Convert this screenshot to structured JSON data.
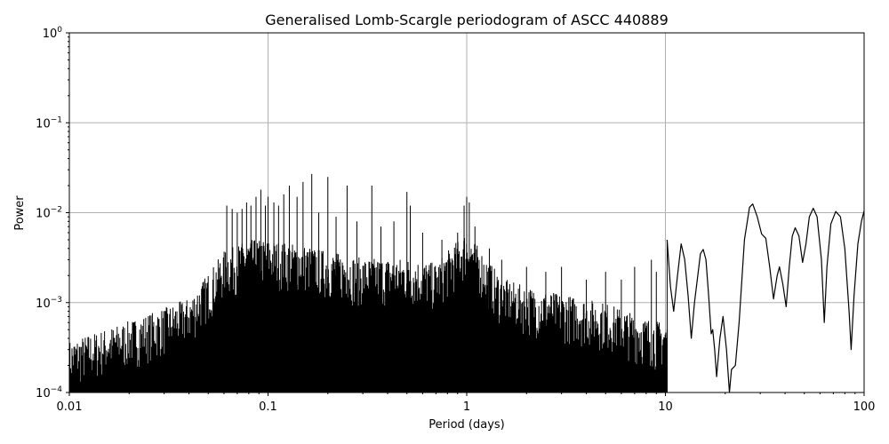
{
  "chart_data": {
    "type": "line",
    "title": "Generalised Lomb-Scargle periodogram of ASCC 440889",
    "xlabel": "Period (days)",
    "ylabel": "Power",
    "xscale": "log",
    "yscale": "log",
    "xlim": [
      0.01,
      100
    ],
    "ylim": [
      0.0001,
      1
    ],
    "grid": true,
    "x_ticks": [
      {
        "value": 0.01,
        "label": "0.01"
      },
      {
        "value": 0.1,
        "label": "0.1"
      },
      {
        "value": 1,
        "label": "1"
      },
      {
        "value": 10,
        "label": "10"
      },
      {
        "value": 100,
        "label": "100"
      }
    ],
    "y_ticks": [
      {
        "value": 0.0001,
        "base": "10",
        "exp": "−4"
      },
      {
        "value": 0.001,
        "base": "10",
        "exp": "−3"
      },
      {
        "value": 0.01,
        "base": "10",
        "exp": "−2"
      },
      {
        "value": 0.1,
        "base": "10",
        "exp": "−1"
      },
      {
        "value": 1,
        "base": "10",
        "exp": "0"
      }
    ],
    "series": [
      {
        "color": "#000000",
        "envelope": [
          [
            0.01,
            0.0003
          ],
          [
            0.02,
            0.0005
          ],
          [
            0.03,
            0.0007
          ],
          [
            0.04,
            0.0009
          ],
          [
            0.05,
            0.0017
          ],
          [
            0.06,
            0.003
          ],
          [
            0.08,
            0.004
          ],
          [
            0.1,
            0.004
          ],
          [
            0.15,
            0.0035
          ],
          [
            0.2,
            0.003
          ],
          [
            0.3,
            0.0025
          ],
          [
            0.5,
            0.0025
          ],
          [
            0.7,
            0.0022
          ],
          [
            1.0,
            0.005
          ],
          [
            1.5,
            0.0015
          ],
          [
            2.0,
            0.0012
          ],
          [
            3.0,
            0.001
          ],
          [
            5.0,
            0.0008
          ],
          [
            7.0,
            0.0006
          ],
          [
            9.0,
            0.0005
          ]
        ],
        "peaks": [
          [
            0.062,
            0.012
          ],
          [
            0.066,
            0.011
          ],
          [
            0.07,
            0.01
          ],
          [
            0.074,
            0.011
          ],
          [
            0.078,
            0.013
          ],
          [
            0.082,
            0.012
          ],
          [
            0.087,
            0.015
          ],
          [
            0.092,
            0.018
          ],
          [
            0.097,
            0.012
          ],
          [
            0.1,
            0.015
          ],
          [
            0.107,
            0.013
          ],
          [
            0.113,
            0.012
          ],
          [
            0.12,
            0.016
          ],
          [
            0.128,
            0.02
          ],
          [
            0.14,
            0.015
          ],
          [
            0.15,
            0.022
          ],
          [
            0.166,
            0.027
          ],
          [
            0.18,
            0.01
          ],
          [
            0.2,
            0.025
          ],
          [
            0.22,
            0.009
          ],
          [
            0.25,
            0.02
          ],
          [
            0.28,
            0.008
          ],
          [
            0.333,
            0.02
          ],
          [
            0.37,
            0.007
          ],
          [
            0.43,
            0.008
          ],
          [
            0.5,
            0.017
          ],
          [
            0.52,
            0.012
          ],
          [
            0.6,
            0.006
          ],
          [
            0.75,
            0.005
          ],
          [
            0.9,
            0.006
          ],
          [
            0.97,
            0.012
          ],
          [
            1.0,
            0.015
          ],
          [
            1.03,
            0.013
          ],
          [
            1.1,
            0.007
          ],
          [
            1.3,
            0.004
          ],
          [
            1.5,
            0.003
          ],
          [
            2.0,
            0.0025
          ],
          [
            2.5,
            0.0022
          ],
          [
            3.0,
            0.0025
          ],
          [
            4.0,
            0.0018
          ],
          [
            5.0,
            0.0022
          ],
          [
            6.0,
            0.0018
          ],
          [
            7.0,
            0.0025
          ],
          [
            8.5,
            0.003
          ],
          [
            9.0,
            0.0022
          ],
          [
            10.2,
            0.005
          ]
        ],
        "smooth_curve": [
          [
            10.2,
            0.005
          ],
          [
            10.6,
            0.0015
          ],
          [
            11.0,
            0.0008
          ],
          [
            11.5,
            0.002
          ],
          [
            12.0,
            0.0045
          ],
          [
            12.5,
            0.003
          ],
          [
            13.0,
            0.0012
          ],
          [
            13.5,
            0.0004
          ],
          [
            14.0,
            0.001
          ],
          [
            15.0,
            0.0035
          ],
          [
            15.5,
            0.0039
          ],
          [
            16.0,
            0.003
          ],
          [
            16.5,
            0.0012
          ],
          [
            17.0,
            0.00045
          ],
          [
            17.3,
            0.0005
          ],
          [
            17.7,
            0.0003
          ],
          [
            18.1,
            0.00015
          ],
          [
            18.8,
            0.0004
          ],
          [
            19.5,
            0.0007
          ],
          [
            20.3,
            0.0003
          ],
          [
            21.0,
            0.0001
          ],
          [
            21.5,
            0.00018
          ],
          [
            22.5,
            0.0002
          ],
          [
            23.5,
            0.0006
          ],
          [
            25.0,
            0.005
          ],
          [
            26.5,
            0.0115
          ],
          [
            27.5,
            0.0125
          ],
          [
            29.0,
            0.009
          ],
          [
            30.5,
            0.0058
          ],
          [
            32.0,
            0.0052
          ],
          [
            33.5,
            0.0025
          ],
          [
            35.0,
            0.0011
          ],
          [
            36.5,
            0.002
          ],
          [
            37.5,
            0.0025
          ],
          [
            39.0,
            0.0016
          ],
          [
            40.5,
            0.0009
          ],
          [
            42.0,
            0.0025
          ],
          [
            43.5,
            0.0055
          ],
          [
            45.0,
            0.0068
          ],
          [
            47.0,
            0.0055
          ],
          [
            49.0,
            0.0028
          ],
          [
            51.0,
            0.0045
          ],
          [
            53.0,
            0.009
          ],
          [
            55.5,
            0.0112
          ],
          [
            58.0,
            0.009
          ],
          [
            61.0,
            0.003
          ],
          [
            63.0,
            0.0006
          ],
          [
            65.0,
            0.0025
          ],
          [
            68.0,
            0.0075
          ],
          [
            72.0,
            0.0103
          ],
          [
            76.0,
            0.009
          ],
          [
            80.0,
            0.004
          ],
          [
            84.0,
            0.0008
          ],
          [
            86.0,
            0.0003
          ],
          [
            89.0,
            0.0012
          ],
          [
            93.0,
            0.0045
          ],
          [
            97.0,
            0.008
          ],
          [
            100.0,
            0.0105
          ]
        ]
      }
    ]
  }
}
